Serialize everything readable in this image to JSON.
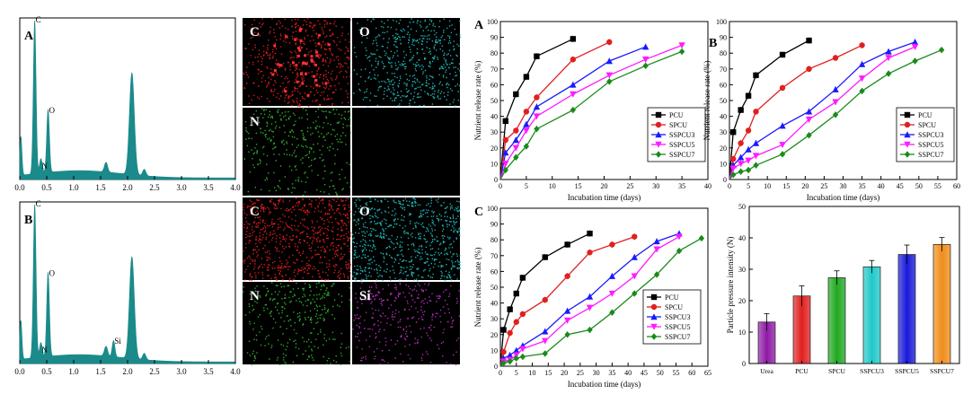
{
  "eds_panels": [
    {
      "label": "A",
      "peaks": [
        {
          "element": "C",
          "energy": 0.277,
          "intensity": 0.95
        },
        {
          "element": "O",
          "energy": 0.525,
          "intensity": 0.39
        },
        {
          "element": "N",
          "energy": 0.392,
          "intensity": 0.09
        }
      ],
      "xlim": [
        0,
        4.0
      ],
      "x_ticks": [
        "0.0",
        "0.5",
        "1.0",
        "1.5",
        "2.0",
        "2.5",
        "3.0",
        "3.5",
        "4.0"
      ]
    },
    {
      "label": "B",
      "peaks": [
        {
          "element": "C",
          "energy": 0.277,
          "intensity": 0.95
        },
        {
          "element": "O",
          "energy": 0.525,
          "intensity": 0.52
        },
        {
          "element": "N",
          "energy": 0.392,
          "intensity": 0.09
        },
        {
          "element": "Si",
          "energy": 1.74,
          "intensity": 0.1
        }
      ],
      "xlim": [
        0,
        4.0
      ],
      "x_ticks": [
        "0.0",
        "0.5",
        "1.0",
        "1.5",
        "2.0",
        "2.5",
        "3.0",
        "3.5",
        "4.0"
      ]
    }
  ],
  "map_tiles": [
    {
      "label": "C",
      "color": "#ff2020"
    },
    {
      "label": "O",
      "color": "#22cccc"
    },
    {
      "label": "N",
      "color": "#33cc33"
    },
    {
      "label": "",
      "color": "#000000"
    },
    {
      "label": "C",
      "color": "#ff2020"
    },
    {
      "label": "O",
      "color": "#22cccc"
    },
    {
      "label": "N",
      "color": "#33cc33"
    },
    {
      "label": "Si",
      "color": "#cc33cc"
    }
  ],
  "series_colors": {
    "PCU": "#000000",
    "SPCU": "#e02020",
    "SSPCU3": "#1a1aff",
    "SSPCU5": "#ff1aff",
    "SSPCU7": "#1a8a1a"
  },
  "chart_data": [
    {
      "type": "line",
      "panel_label": "A",
      "xlabel": "Incubation time (days)",
      "ylabel": "Nutrient release rate (%)",
      "xlim": [
        0,
        40
      ],
      "ylim": [
        0,
        100
      ],
      "x_ticks": [
        "0",
        "5",
        "10",
        "15",
        "20",
        "25",
        "30",
        "35",
        "40"
      ],
      "y_ticks": [
        "0",
        "10",
        "20",
        "30",
        "40",
        "50",
        "60",
        "70",
        "80",
        "90",
        "100"
      ],
      "legend_position": "bottom-right",
      "series": [
        {
          "name": "PCU",
          "marker": "square",
          "points": [
            [
              0,
              0
            ],
            [
              1,
              37
            ],
            [
              3,
              54
            ],
            [
              5,
              65
            ],
            [
              7,
              78
            ],
            [
              14,
              89
            ]
          ]
        },
        {
          "name": "SPCU",
          "marker": "circle",
          "points": [
            [
              0,
              0
            ],
            [
              1,
              25
            ],
            [
              3,
              31
            ],
            [
              5,
              43
            ],
            [
              7,
              52
            ],
            [
              14,
              76
            ],
            [
              21,
              87
            ]
          ]
        },
        {
          "name": "SSPCU3",
          "marker": "triangle-up",
          "points": [
            [
              0,
              0
            ],
            [
              1,
              17
            ],
            [
              3,
              25
            ],
            [
              5,
              35
            ],
            [
              7,
              46
            ],
            [
              14,
              60
            ],
            [
              21,
              75
            ],
            [
              28,
              84
            ]
          ]
        },
        {
          "name": "SSPCU5",
          "marker": "triangle-down",
          "points": [
            [
              0,
              0
            ],
            [
              1,
              10
            ],
            [
              3,
              20
            ],
            [
              5,
              31
            ],
            [
              7,
              40
            ],
            [
              14,
              54
            ],
            [
              21,
              66
            ],
            [
              28,
              76
            ],
            [
              35,
              85
            ]
          ]
        },
        {
          "name": "SSPCU7",
          "marker": "diamond",
          "points": [
            [
              0,
              0
            ],
            [
              1,
              6
            ],
            [
              3,
              14
            ],
            [
              5,
              21
            ],
            [
              7,
              32
            ],
            [
              14,
              44
            ],
            [
              21,
              62
            ],
            [
              28,
              72
            ],
            [
              35,
              81
            ]
          ]
        }
      ]
    },
    {
      "type": "line",
      "panel_label": "B",
      "xlabel": "Incubation time (days)",
      "ylabel": "Nutrient release rate (%)",
      "xlim": [
        0,
        60
      ],
      "ylim": [
        0,
        100
      ],
      "x_ticks": [
        "0",
        "5",
        "10",
        "15",
        "20",
        "25",
        "30",
        "35",
        "40",
        "45",
        "50",
        "55",
        "60"
      ],
      "y_ticks": [
        "0",
        "10",
        "20",
        "30",
        "40",
        "50",
        "60",
        "70",
        "80",
        "90",
        "100"
      ],
      "legend_position": "bottom-right",
      "series": [
        {
          "name": "PCU",
          "marker": "square",
          "points": [
            [
              0,
              0
            ],
            [
              1,
              30
            ],
            [
              3,
              44
            ],
            [
              5,
              53
            ],
            [
              7,
              66
            ],
            [
              14,
              79
            ],
            [
              21,
              88
            ]
          ]
        },
        {
          "name": "SPCU",
          "marker": "circle",
          "points": [
            [
              0,
              0
            ],
            [
              1,
              13
            ],
            [
              3,
              23
            ],
            [
              5,
              31
            ],
            [
              7,
              43
            ],
            [
              14,
              58
            ],
            [
              21,
              70
            ],
            [
              28,
              77
            ],
            [
              35,
              85
            ]
          ]
        },
        {
          "name": "SSPCU3",
          "marker": "triangle-up",
          "points": [
            [
              0,
              0
            ],
            [
              1,
              9
            ],
            [
              3,
              14
            ],
            [
              5,
              19
            ],
            [
              7,
              23
            ],
            [
              14,
              34
            ],
            [
              21,
              43
            ],
            [
              28,
              57
            ],
            [
              35,
              73
            ],
            [
              42,
              81
            ],
            [
              49,
              87
            ]
          ]
        },
        {
          "name": "SSPCU5",
          "marker": "triangle-down",
          "points": [
            [
              0,
              0
            ],
            [
              1,
              7
            ],
            [
              3,
              10
            ],
            [
              5,
              12
            ],
            [
              7,
              15
            ],
            [
              14,
              22
            ],
            [
              21,
              38
            ],
            [
              28,
              49
            ],
            [
              35,
              64
            ],
            [
              42,
              77
            ],
            [
              49,
              84
            ]
          ]
        },
        {
          "name": "SSPCU7",
          "marker": "diamond",
          "points": [
            [
              0,
              0
            ],
            [
              1,
              3
            ],
            [
              3,
              5
            ],
            [
              5,
              6
            ],
            [
              7,
              9
            ],
            [
              14,
              16
            ],
            [
              21,
              28
            ],
            [
              28,
              41
            ],
            [
              35,
              56
            ],
            [
              42,
              67
            ],
            [
              49,
              75
            ],
            [
              56,
              82
            ]
          ]
        }
      ]
    },
    {
      "type": "line",
      "panel_label": "C",
      "xlabel": "Incubation time (days)",
      "ylabel": "Nutrient release rate (%)",
      "xlim": [
        0,
        65
      ],
      "ylim": [
        0,
        100
      ],
      "x_ticks": [
        "0",
        "5",
        "10",
        "15",
        "20",
        "25",
        "30",
        "35",
        "40",
        "45",
        "50",
        "55",
        "60",
        "65"
      ],
      "y_ticks": [
        "0",
        "10",
        "20",
        "30",
        "40",
        "50",
        "60",
        "70",
        "80",
        "90",
        "100"
      ],
      "legend_position": "bottom-right",
      "series": [
        {
          "name": "PCU",
          "marker": "square",
          "points": [
            [
              0,
              0
            ],
            [
              1,
              23
            ],
            [
              3,
              36
            ],
            [
              5,
              46
            ],
            [
              7,
              56
            ],
            [
              14,
              69
            ],
            [
              21,
              77
            ],
            [
              28,
              84
            ]
          ]
        },
        {
          "name": "SPCU",
          "marker": "circle",
          "points": [
            [
              0,
              0
            ],
            [
              1,
              9
            ],
            [
              3,
              21
            ],
            [
              5,
              28
            ],
            [
              7,
              33
            ],
            [
              14,
              42
            ],
            [
              21,
              57
            ],
            [
              28,
              72
            ],
            [
              35,
              77
            ],
            [
              42,
              82
            ]
          ]
        },
        {
          "name": "SSPCU3",
          "marker": "triangle-up",
          "points": [
            [
              0,
              0
            ],
            [
              1,
              5
            ],
            [
              3,
              7
            ],
            [
              5,
              10
            ],
            [
              7,
              13
            ],
            [
              14,
              22
            ],
            [
              21,
              35
            ],
            [
              28,
              44
            ],
            [
              35,
              57
            ],
            [
              42,
              69
            ],
            [
              49,
              79
            ],
            [
              56,
              84
            ]
          ]
        },
        {
          "name": "SSPCU5",
          "marker": "triangle-down",
          "points": [
            [
              0,
              0
            ],
            [
              1,
              3
            ],
            [
              3,
              4
            ],
            [
              5,
              7
            ],
            [
              7,
              11
            ],
            [
              14,
              16
            ],
            [
              21,
              29
            ],
            [
              28,
              37
            ],
            [
              35,
              46
            ],
            [
              42,
              57
            ],
            [
              49,
              74
            ],
            [
              56,
              82
            ]
          ]
        },
        {
          "name": "SSPCU7",
          "marker": "diamond",
          "points": [
            [
              0,
              0
            ],
            [
              1,
              2
            ],
            [
              3,
              3
            ],
            [
              5,
              5
            ],
            [
              7,
              6
            ],
            [
              14,
              8
            ],
            [
              21,
              20
            ],
            [
              28,
              23
            ],
            [
              35,
              34
            ],
            [
              42,
              46
            ],
            [
              49,
              58
            ],
            [
              56,
              73
            ],
            [
              63,
              81
            ]
          ]
        }
      ]
    },
    {
      "type": "bar",
      "ylabel": "Particle pressure intensity (N)",
      "ylim": [
        0,
        50
      ],
      "y_ticks": [
        "0",
        "10",
        "20",
        "30",
        "40",
        "50"
      ],
      "categories": [
        "Urea",
        "PCU",
        "SPCU",
        "SSPCU3",
        "SSPCU5",
        "SSPCU7"
      ],
      "values": [
        13.2,
        21.5,
        27.3,
        30.8,
        34.7,
        37.9
      ],
      "errors": [
        2.7,
        3.2,
        2.2,
        2.0,
        3.0,
        2.2
      ],
      "colors": [
        "#8d1aa4",
        "#e02020",
        "#1fa81f",
        "#20c8c8",
        "#1818d8",
        "#f08c1a"
      ]
    }
  ]
}
